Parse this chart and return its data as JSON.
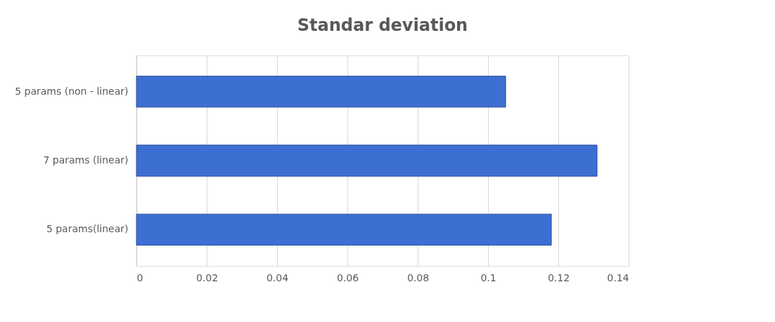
{
  "chart_data": {
    "type": "bar",
    "title": "Standar deviation",
    "orientation": "horizontal",
    "categories": [
      "5 params (non - linear)",
      "7 params (linear)",
      "5 params(linear)"
    ],
    "values": [
      0.105,
      0.131,
      0.118
    ],
    "color": "#3d6fd3",
    "xlim": [
      0,
      0.14
    ],
    "xticks": [
      0,
      0.02,
      0.04,
      0.06,
      0.08,
      0.1,
      0.12,
      0.14
    ],
    "grid": "x"
  }
}
